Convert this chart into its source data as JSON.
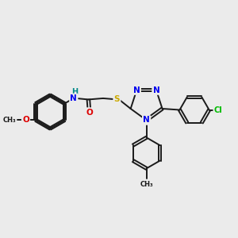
{
  "bg_color": "#ebebeb",
  "bond_color": "#1a1a1a",
  "bond_width": 1.4,
  "atom_colors": {
    "N": "#0000ee",
    "O": "#dd0000",
    "S": "#ccaa00",
    "Cl": "#00bb00",
    "NH": "#008888",
    "C": "#1a1a1a"
  },
  "font_size": 7.5,
  "figsize": [
    3.0,
    3.0
  ],
  "dpi": 100,
  "xlim": [
    0,
    10
  ],
  "ylim": [
    0,
    10
  ]
}
